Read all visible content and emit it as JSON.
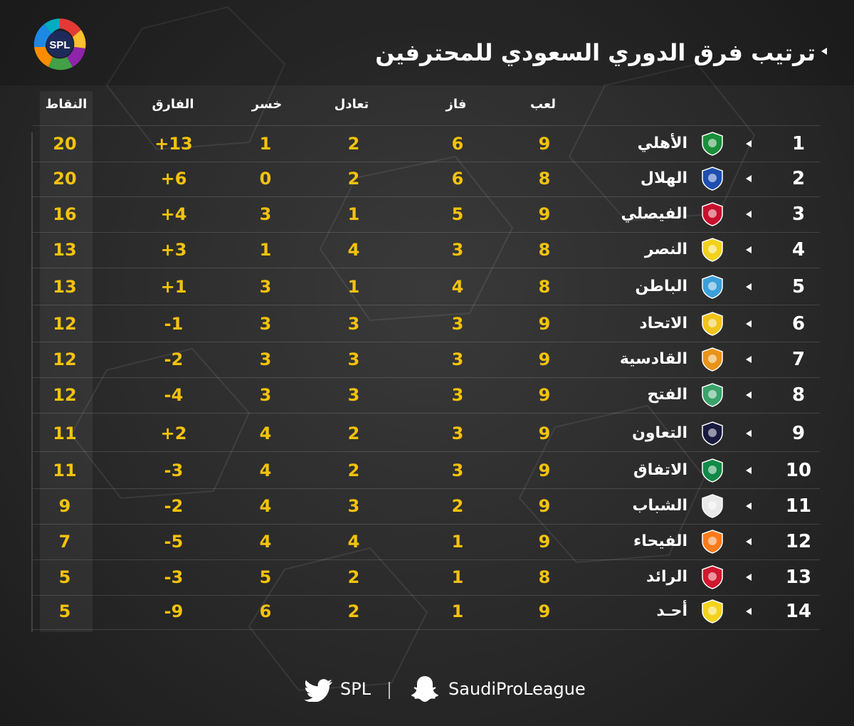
{
  "title": "ترتيب فرق الدوري السعودي للمحترفين",
  "logo_text": "SPL",
  "columns": {
    "played": "لعب",
    "won": "فاز",
    "drawn": "تعادل",
    "lost": "خسر",
    "diff": "الفارق",
    "points": "النقاط"
  },
  "rows": [
    {
      "rank": "1",
      "team": "الأهلي",
      "played": "9",
      "won": "6",
      "drawn": "2",
      "lost": "1",
      "diff": "+13",
      "points": "20",
      "crest": "#1a8f3a"
    },
    {
      "rank": "2",
      "team": "الهلال",
      "played": "8",
      "won": "6",
      "drawn": "2",
      "lost": "0",
      "diff": "+6",
      "points": "20",
      "crest": "#1e4fb0"
    },
    {
      "rank": "3",
      "team": "الفيصلي",
      "played": "9",
      "won": "5",
      "drawn": "1",
      "lost": "3",
      "diff": "+4",
      "points": "16",
      "crest": "#c8102e"
    },
    {
      "rank": "4",
      "team": "النصر",
      "played": "8",
      "won": "3",
      "drawn": "4",
      "lost": "1",
      "diff": "+3",
      "points": "13",
      "crest": "#f3d21c"
    },
    {
      "rank": "5",
      "team": "الباطن",
      "played": "8",
      "won": "4",
      "drawn": "1",
      "lost": "3",
      "diff": "+1",
      "points": "13",
      "crest": "#3aa0d8"
    },
    {
      "rank": "6",
      "team": "الاتحاد",
      "played": "9",
      "won": "3",
      "drawn": "3",
      "lost": "3",
      "diff": "-1",
      "points": "12",
      "crest": "#f0c419"
    },
    {
      "rank": "7",
      "team": "القادسية",
      "played": "9",
      "won": "3",
      "drawn": "3",
      "lost": "3",
      "diff": "-2",
      "points": "12",
      "crest": "#e8931a"
    },
    {
      "rank": "8",
      "team": "الفتح",
      "played": "9",
      "won": "3",
      "drawn": "3",
      "lost": "3",
      "diff": "-4",
      "points": "12",
      "crest": "#3aa36a"
    },
    {
      "rank": "9",
      "team": "التعاون",
      "played": "9",
      "won": "3",
      "drawn": "2",
      "lost": "4",
      "diff": "+2",
      "points": "11",
      "crest": "#1a1a40"
    },
    {
      "rank": "10",
      "team": "الاتفاق",
      "played": "9",
      "won": "3",
      "drawn": "2",
      "lost": "4",
      "diff": "-3",
      "points": "11",
      "crest": "#118a47"
    },
    {
      "rank": "11",
      "team": "الشباب",
      "played": "9",
      "won": "2",
      "drawn": "3",
      "lost": "4",
      "diff": "-2",
      "points": "9",
      "crest": "#e8e8e8"
    },
    {
      "rank": "12",
      "team": "الفيحاء",
      "played": "9",
      "won": "1",
      "drawn": "4",
      "lost": "4",
      "diff": "-5",
      "points": "7",
      "crest": "#ff7a1a"
    },
    {
      "rank": "13",
      "team": "الرائد",
      "played": "8",
      "won": "1",
      "drawn": "2",
      "lost": "5",
      "diff": "-3",
      "points": "5",
      "crest": "#d1182e"
    },
    {
      "rank": "14",
      "team": "أحـد",
      "played": "9",
      "won": "1",
      "drawn": "2",
      "lost": "6",
      "diff": "-9",
      "points": "5",
      "crest": "#f4d31c"
    }
  ],
  "footer": {
    "twitter_handle": "SPL",
    "snapchat_handle": "SaudiProLeague",
    "twitter_icon": "twitter-bird-icon",
    "snapchat_icon": "snapchat-ghost-icon"
  }
}
